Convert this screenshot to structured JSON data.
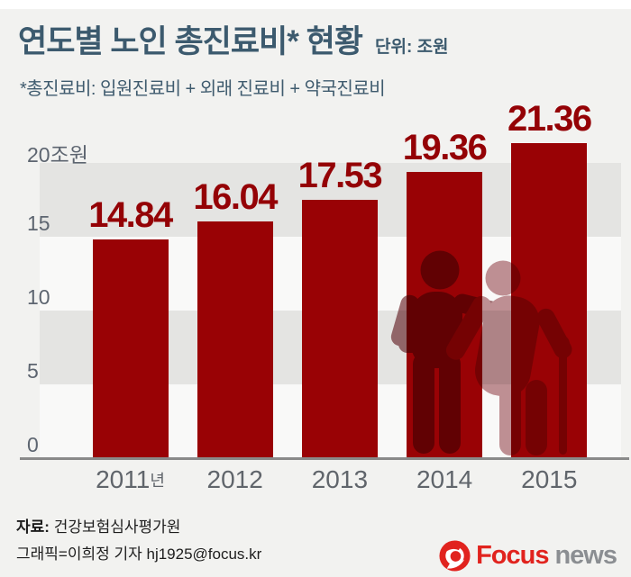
{
  "header": {
    "title": "연도별 노인 총진료비* 현황",
    "unit": "단위: 조원",
    "note": "*총진료비: 입원진료비 + 외래 진료비 + 약국진료비"
  },
  "chart_data": {
    "type": "bar",
    "title": "연도별 노인 총진료비 현황",
    "unit": "조원",
    "categories": [
      "2011년",
      "2012",
      "2013",
      "2014",
      "2015"
    ],
    "categories_display": [
      {
        "text": "2011",
        "suffix": "년"
      },
      {
        "text": "2012"
      },
      {
        "text": "2013"
      },
      {
        "text": "2014"
      },
      {
        "text": "2015"
      }
    ],
    "values": [
      14.84,
      16.04,
      17.53,
      19.36,
      21.36
    ],
    "value_labels": [
      "14.84",
      "16.04",
      "17.53",
      "19.36",
      "21.36"
    ],
    "yticks": [
      {
        "value": 20,
        "label": "20조원"
      },
      {
        "value": 15,
        "label": "15"
      },
      {
        "value": 10,
        "label": "10"
      },
      {
        "value": 5,
        "label": "5"
      },
      {
        "value": 0,
        "label": "0"
      }
    ],
    "ylim": [
      0,
      22
    ],
    "grid": "horizontal-alternating-bands",
    "legend": "none"
  },
  "footer": {
    "source_label": "자료:",
    "source": "건강보험심사평가원",
    "credit": "그래픽=이희정 기자 hj1925@focus.kr"
  },
  "logo": {
    "brand": "Focus",
    "suffix": "news",
    "icon": "swirl-logo-icon"
  },
  "icons": {
    "silhouette": "elderly-person-assisted-with-cane-silhouette"
  },
  "colors": {
    "background": "#f2f2f0",
    "top_strip": "#ffffff",
    "title": "#3c5a6e",
    "note": "#3f5b6e",
    "band": "#e4e4e2",
    "band_light": "#f9f9f8",
    "bar": "#990205",
    "value_label": "#940206",
    "tick": "#5d6570",
    "xtick": "#60656b",
    "axis_line": "#8a8a8a",
    "footer_text": "#1d1d1d",
    "logo_red": "#e1231e",
    "logo_gray": "#8b8e92",
    "silhouette_back": "#a27175",
    "silhouette_front": "#c39397"
  }
}
